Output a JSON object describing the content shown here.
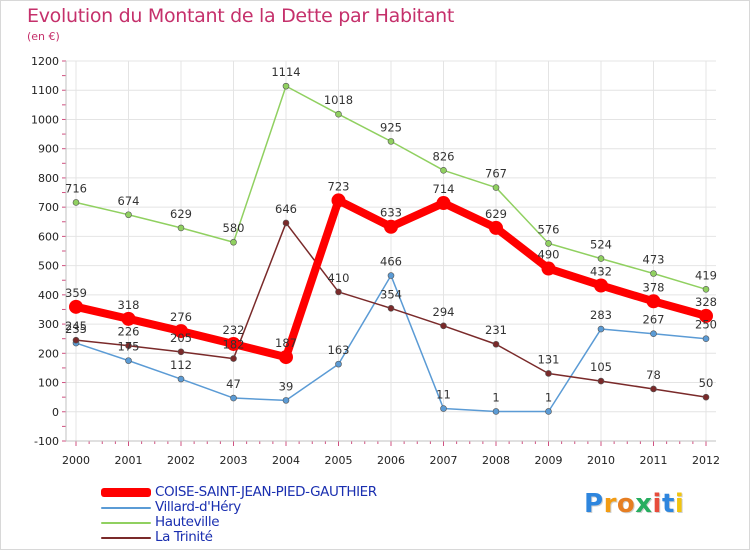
{
  "chart_data": {
    "type": "line",
    "title": "Evolution du Montant de la Dette par Habitant",
    "subtitle": "(en €)",
    "x": [
      "2000",
      "2001",
      "2002",
      "2003",
      "2004",
      "2005",
      "2006",
      "2007",
      "2008",
      "2009",
      "2010",
      "2011",
      "2012"
    ],
    "ylim": [
      -100,
      1200
    ],
    "yticks": [
      -100,
      0,
      100,
      200,
      300,
      400,
      500,
      600,
      700,
      800,
      900,
      1000,
      1100,
      1200
    ],
    "grid": true,
    "legend_position": "bottom-left",
    "series": [
      {
        "name": "COISE-SAINT-JEAN-PIED-GAUTHIER",
        "color": "#ff0000",
        "emphasis": true,
        "values": [
          359,
          318,
          276,
          232,
          187,
          723,
          633,
          714,
          629,
          490,
          432,
          378,
          328
        ]
      },
      {
        "name": "Villard-d'Héry",
        "color": "#5b9bd5",
        "values": [
          235,
          175,
          112,
          47,
          39,
          163,
          466,
          11,
          1,
          1,
          283,
          267,
          250
        ]
      },
      {
        "name": "Hauteville",
        "color": "#90d060",
        "values": [
          716,
          674,
          629,
          580,
          1114,
          1018,
          925,
          826,
          767,
          576,
          524,
          473,
          419
        ]
      },
      {
        "name": "La Trinité",
        "color": "#7a2a2a",
        "values": [
          245,
          226,
          205,
          182,
          646,
          410,
          354,
          294,
          231,
          131,
          105,
          78,
          50
        ]
      }
    ]
  },
  "brand": {
    "letters": [
      "P",
      "r",
      "o",
      "x",
      "i",
      "t",
      "i"
    ],
    "colors": [
      "#2e86de",
      "#f39c12",
      "#e67e22",
      "#27ae60",
      "#e74c3c",
      "#2e86de",
      "#f1c40f"
    ]
  }
}
